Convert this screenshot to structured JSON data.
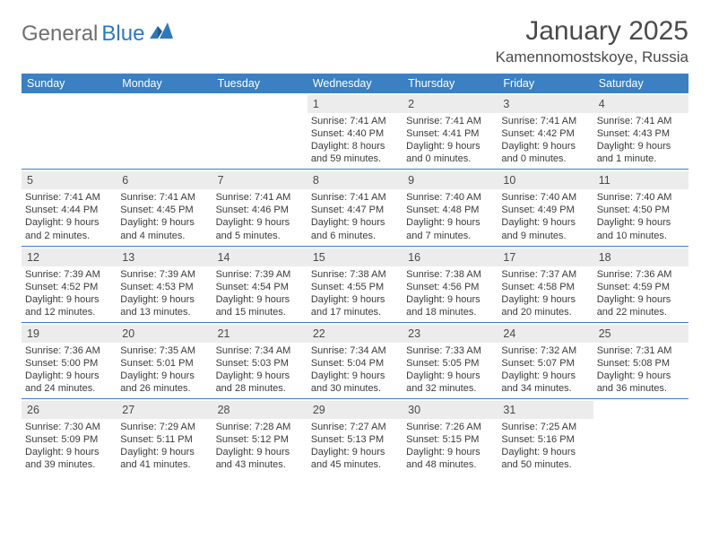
{
  "brand": {
    "general": "General",
    "blue": "Blue"
  },
  "title": "January 2025",
  "location": "Kamennomostskoye, Russia",
  "colors": {
    "header_bg": "#3a80c3",
    "daynum_bg": "#ececec",
    "text": "#3a3a3a",
    "title_text": "#4a4a4a",
    "logo_gray": "#6f6f6f",
    "logo_blue": "#2f78bd",
    "rule": "#3a80c3",
    "bg": "#ffffff"
  },
  "typography": {
    "month_title_size_pt": 22,
    "location_size_pt": 13,
    "day_header_size_pt": 9.5,
    "daynum_size_pt": 9.5,
    "info_size_pt": 8.3
  },
  "day_headers": [
    "Sunday",
    "Monday",
    "Tuesday",
    "Wednesday",
    "Thursday",
    "Friday",
    "Saturday"
  ],
  "weeks": [
    [
      {
        "blank": true
      },
      {
        "blank": true
      },
      {
        "blank": true
      },
      {
        "n": "1",
        "sr": "7:41 AM",
        "ss": "4:40 PM",
        "dl": "8 hours and 59 minutes."
      },
      {
        "n": "2",
        "sr": "7:41 AM",
        "ss": "4:41 PM",
        "dl": "9 hours and 0 minutes."
      },
      {
        "n": "3",
        "sr": "7:41 AM",
        "ss": "4:42 PM",
        "dl": "9 hours and 0 minutes."
      },
      {
        "n": "4",
        "sr": "7:41 AM",
        "ss": "4:43 PM",
        "dl": "9 hours and 1 minute."
      }
    ],
    [
      {
        "n": "5",
        "sr": "7:41 AM",
        "ss": "4:44 PM",
        "dl": "9 hours and 2 minutes."
      },
      {
        "n": "6",
        "sr": "7:41 AM",
        "ss": "4:45 PM",
        "dl": "9 hours and 4 minutes."
      },
      {
        "n": "7",
        "sr": "7:41 AM",
        "ss": "4:46 PM",
        "dl": "9 hours and 5 minutes."
      },
      {
        "n": "8",
        "sr": "7:41 AM",
        "ss": "4:47 PM",
        "dl": "9 hours and 6 minutes."
      },
      {
        "n": "9",
        "sr": "7:40 AM",
        "ss": "4:48 PM",
        "dl": "9 hours and 7 minutes."
      },
      {
        "n": "10",
        "sr": "7:40 AM",
        "ss": "4:49 PM",
        "dl": "9 hours and 9 minutes."
      },
      {
        "n": "11",
        "sr": "7:40 AM",
        "ss": "4:50 PM",
        "dl": "9 hours and 10 minutes."
      }
    ],
    [
      {
        "n": "12",
        "sr": "7:39 AM",
        "ss": "4:52 PM",
        "dl": "9 hours and 12 minutes."
      },
      {
        "n": "13",
        "sr": "7:39 AM",
        "ss": "4:53 PM",
        "dl": "9 hours and 13 minutes."
      },
      {
        "n": "14",
        "sr": "7:39 AM",
        "ss": "4:54 PM",
        "dl": "9 hours and 15 minutes."
      },
      {
        "n": "15",
        "sr": "7:38 AM",
        "ss": "4:55 PM",
        "dl": "9 hours and 17 minutes."
      },
      {
        "n": "16",
        "sr": "7:38 AM",
        "ss": "4:56 PM",
        "dl": "9 hours and 18 minutes."
      },
      {
        "n": "17",
        "sr": "7:37 AM",
        "ss": "4:58 PM",
        "dl": "9 hours and 20 minutes."
      },
      {
        "n": "18",
        "sr": "7:36 AM",
        "ss": "4:59 PM",
        "dl": "9 hours and 22 minutes."
      }
    ],
    [
      {
        "n": "19",
        "sr": "7:36 AM",
        "ss": "5:00 PM",
        "dl": "9 hours and 24 minutes."
      },
      {
        "n": "20",
        "sr": "7:35 AM",
        "ss": "5:01 PM",
        "dl": "9 hours and 26 minutes."
      },
      {
        "n": "21",
        "sr": "7:34 AM",
        "ss": "5:03 PM",
        "dl": "9 hours and 28 minutes."
      },
      {
        "n": "22",
        "sr": "7:34 AM",
        "ss": "5:04 PM",
        "dl": "9 hours and 30 minutes."
      },
      {
        "n": "23",
        "sr": "7:33 AM",
        "ss": "5:05 PM",
        "dl": "9 hours and 32 minutes."
      },
      {
        "n": "24",
        "sr": "7:32 AM",
        "ss": "5:07 PM",
        "dl": "9 hours and 34 minutes."
      },
      {
        "n": "25",
        "sr": "7:31 AM",
        "ss": "5:08 PM",
        "dl": "9 hours and 36 minutes."
      }
    ],
    [
      {
        "n": "26",
        "sr": "7:30 AM",
        "ss": "5:09 PM",
        "dl": "9 hours and 39 minutes."
      },
      {
        "n": "27",
        "sr": "7:29 AM",
        "ss": "5:11 PM",
        "dl": "9 hours and 41 minutes."
      },
      {
        "n": "28",
        "sr": "7:28 AM",
        "ss": "5:12 PM",
        "dl": "9 hours and 43 minutes."
      },
      {
        "n": "29",
        "sr": "7:27 AM",
        "ss": "5:13 PM",
        "dl": "9 hours and 45 minutes."
      },
      {
        "n": "30",
        "sr": "7:26 AM",
        "ss": "5:15 PM",
        "dl": "9 hours and 48 minutes."
      },
      {
        "n": "31",
        "sr": "7:25 AM",
        "ss": "5:16 PM",
        "dl": "9 hours and 50 minutes."
      },
      {
        "blank": true
      }
    ]
  ],
  "labels": {
    "sunrise_prefix": "Sunrise: ",
    "sunset_prefix": "Sunset: ",
    "daylight_prefix": "Daylight: "
  }
}
